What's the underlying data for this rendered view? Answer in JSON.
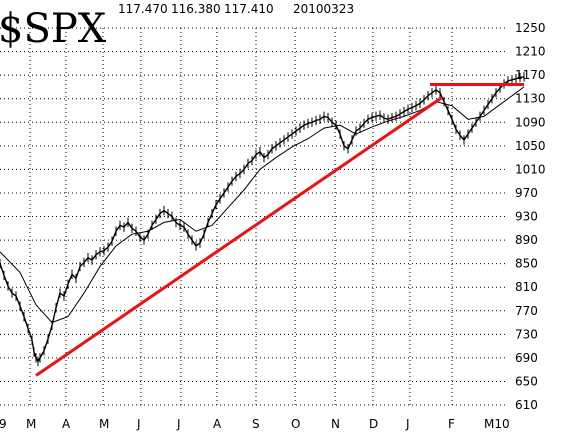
{
  "chart_data": {
    "type": "line",
    "symbol": "$SPX",
    "ohlc_header": [
      "117.470",
      "116.380",
      "117.410"
    ],
    "date": "20100323",
    "x_tick_labels": [
      "9",
      "M",
      "A",
      "M",
      "J",
      "J",
      "A",
      "S",
      "O",
      "N",
      "D",
      "J",
      "F",
      "M10"
    ],
    "y_tick_labels": [
      "1250",
      "1210",
      "1170",
      "1130",
      "1090",
      "1050",
      "1010",
      "970",
      "930",
      "890",
      "850",
      "810",
      "770",
      "730",
      "690",
      "650",
      "610"
    ],
    "ylim": [
      610,
      1250
    ],
    "grid": true,
    "colors": {
      "price": "#000000",
      "moving_average": "#000000",
      "trendlines": "#ee1111"
    },
    "price_series": [
      [
        0,
        850
      ],
      [
        2,
        830
      ],
      [
        4,
        812
      ],
      [
        6,
        800
      ],
      [
        8,
        795
      ],
      [
        10,
        778
      ],
      [
        12,
        760
      ],
      [
        14,
        740
      ],
      [
        16,
        720
      ],
      [
        17,
        700
      ],
      [
        18,
        690
      ],
      [
        19,
        684
      ],
      [
        20,
        690
      ],
      [
        22,
        702
      ],
      [
        24,
        722
      ],
      [
        26,
        745
      ],
      [
        28,
        775
      ],
      [
        30,
        800
      ],
      [
        32,
        795
      ],
      [
        34,
        815
      ],
      [
        36,
        832
      ],
      [
        38,
        825
      ],
      [
        40,
        845
      ],
      [
        42,
        852
      ],
      [
        44,
        860
      ],
      [
        46,
        856
      ],
      [
        48,
        865
      ],
      [
        50,
        870
      ],
      [
        52,
        872
      ],
      [
        54,
        878
      ],
      [
        56,
        888
      ],
      [
        58,
        905
      ],
      [
        60,
        915
      ],
      [
        62,
        912
      ],
      [
        64,
        920
      ],
      [
        66,
        910
      ],
      [
        68,
        905
      ],
      [
        70,
        895
      ],
      [
        72,
        890
      ],
      [
        74,
        900
      ],
      [
        76,
        915
      ],
      [
        78,
        925
      ],
      [
        80,
        935
      ],
      [
        82,
        940
      ],
      [
        84,
        935
      ],
      [
        86,
        930
      ],
      [
        88,
        920
      ],
      [
        90,
        915
      ],
      [
        92,
        912
      ],
      [
        94,
        900
      ],
      [
        96,
        890
      ],
      [
        98,
        880
      ],
      [
        100,
        885
      ],
      [
        102,
        900
      ],
      [
        104,
        920
      ],
      [
        106,
        935
      ],
      [
        108,
        950
      ],
      [
        110,
        960
      ],
      [
        112,
        970
      ],
      [
        114,
        980
      ],
      [
        116,
        990
      ],
      [
        118,
        998
      ],
      [
        120,
        1003
      ],
      [
        122,
        1010
      ],
      [
        124,
        1020
      ],
      [
        126,
        1025
      ],
      [
        128,
        1035
      ],
      [
        130,
        1040
      ],
      [
        132,
        1030
      ],
      [
        134,
        1035
      ],
      [
        136,
        1045
      ],
      [
        138,
        1050
      ],
      [
        140,
        1055
      ],
      [
        142,
        1060
      ],
      [
        144,
        1065
      ],
      [
        146,
        1070
      ],
      [
        148,
        1075
      ],
      [
        150,
        1080
      ],
      [
        152,
        1085
      ],
      [
        154,
        1088
      ],
      [
        156,
        1090
      ],
      [
        158,
        1093
      ],
      [
        160,
        1095
      ],
      [
        162,
        1100
      ],
      [
        164,
        1098
      ],
      [
        166,
        1090
      ],
      [
        168,
        1085
      ],
      [
        170,
        1070
      ],
      [
        172,
        1050
      ],
      [
        174,
        1045
      ],
      [
        176,
        1060
      ],
      [
        178,
        1075
      ],
      [
        180,
        1080
      ],
      [
        182,
        1088
      ],
      [
        184,
        1095
      ],
      [
        186,
        1098
      ],
      [
        188,
        1100
      ],
      [
        190,
        1102
      ],
      [
        192,
        1097
      ],
      [
        194,
        1095
      ],
      [
        196,
        1098
      ],
      [
        198,
        1100
      ],
      [
        200,
        1104
      ],
      [
        202,
        1108
      ],
      [
        204,
        1112
      ],
      [
        206,
        1115
      ],
      [
        208,
        1118
      ],
      [
        210,
        1122
      ],
      [
        212,
        1128
      ],
      [
        214,
        1135
      ],
      [
        216,
        1140
      ],
      [
        218,
        1145
      ],
      [
        220,
        1140
      ],
      [
        222,
        1125
      ],
      [
        224,
        1110
      ],
      [
        226,
        1095
      ],
      [
        228,
        1078
      ],
      [
        230,
        1068
      ],
      [
        232,
        1060
      ],
      [
        234,
        1070
      ],
      [
        236,
        1080
      ],
      [
        238,
        1090
      ],
      [
        240,
        1100
      ],
      [
        242,
        1110
      ],
      [
        244,
        1120
      ],
      [
        246,
        1130
      ],
      [
        248,
        1140
      ],
      [
        250,
        1148
      ],
      [
        252,
        1155
      ],
      [
        254,
        1160
      ],
      [
        256,
        1162
      ],
      [
        258,
        1164
      ],
      [
        260,
        1166
      ],
      [
        262,
        1167
      ]
    ],
    "moving_average_series": [
      [
        0,
        870
      ],
      [
        10,
        835
      ],
      [
        18,
        780
      ],
      [
        26,
        750
      ],
      [
        34,
        760
      ],
      [
        42,
        800
      ],
      [
        50,
        845
      ],
      [
        58,
        880
      ],
      [
        66,
        900
      ],
      [
        74,
        905
      ],
      [
        82,
        920
      ],
      [
        90,
        925
      ],
      [
        98,
        905
      ],
      [
        106,
        915
      ],
      [
        114,
        945
      ],
      [
        122,
        975
      ],
      [
        130,
        1010
      ],
      [
        138,
        1030
      ],
      [
        146,
        1048
      ],
      [
        154,
        1062
      ],
      [
        162,
        1080
      ],
      [
        170,
        1085
      ],
      [
        178,
        1070
      ],
      [
        186,
        1082
      ],
      [
        194,
        1092
      ],
      [
        202,
        1100
      ],
      [
        210,
        1110
      ],
      [
        218,
        1125
      ],
      [
        226,
        1118
      ],
      [
        234,
        1095
      ],
      [
        242,
        1100
      ],
      [
        250,
        1120
      ],
      [
        258,
        1140
      ],
      [
        262,
        1150
      ]
    ],
    "trendlines": [
      {
        "points": [
          [
            18,
            660
          ],
          [
            221,
            1132
          ]
        ]
      },
      {
        "points": [
          [
            215,
            1154
          ],
          [
            262,
            1154
          ]
        ]
      }
    ]
  }
}
